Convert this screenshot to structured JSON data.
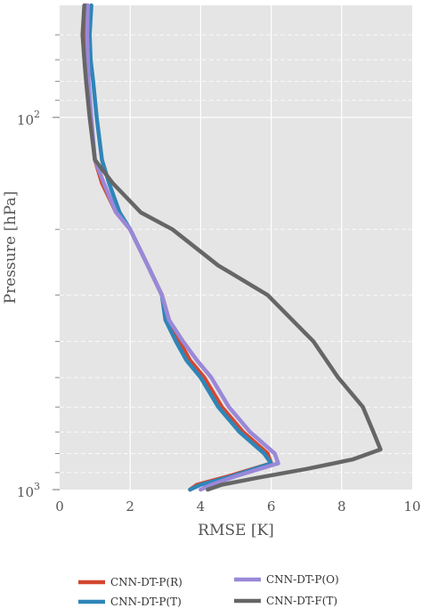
{
  "chart_data": {
    "type": "line",
    "xlabel": "RMSE [K]",
    "ylabel": "Pressure [hPa]",
    "xlim": [
      0,
      10
    ],
    "ylim": [
      1000,
      50
    ],
    "yscale": "log",
    "grid": true,
    "legend_position": "bottom",
    "x_ticks": [
      {
        "value": 0,
        "label": "0"
      },
      {
        "value": 2,
        "label": "2"
      },
      {
        "value": 4,
        "label": "4"
      },
      {
        "value": 6,
        "label": "6"
      },
      {
        "value": 8,
        "label": "8"
      },
      {
        "value": 10,
        "label": "10"
      }
    ],
    "y_ticks": [
      {
        "value": 100,
        "base": "10",
        "exp": "2"
      },
      {
        "value": 1000,
        "base": "10",
        "exp": "3"
      }
    ],
    "y_minor_ticks": [
      60,
      70,
      80,
      90,
      200,
      300,
      400,
      500,
      600,
      700,
      800,
      900
    ],
    "series": [
      {
        "name": "CNN-DT-P(R)",
        "color": "#d3472f",
        "points": [
          [
            0.75,
            50
          ],
          [
            0.72,
            60
          ],
          [
            0.75,
            70
          ],
          [
            0.8,
            80
          ],
          [
            0.88,
            100
          ],
          [
            1.0,
            130
          ],
          [
            1.2,
            150
          ],
          [
            1.6,
            180
          ],
          [
            2.0,
            200
          ],
          [
            2.5,
            250
          ],
          [
            2.9,
            300
          ],
          [
            3.1,
            350
          ],
          [
            3.4,
            400
          ],
          [
            3.7,
            450
          ],
          [
            4.1,
            500
          ],
          [
            4.6,
            600
          ],
          [
            5.2,
            700
          ],
          [
            5.9,
            800
          ],
          [
            6.0,
            850
          ],
          [
            4.8,
            920
          ],
          [
            3.9,
            970
          ],
          [
            3.7,
            1000
          ]
        ]
      },
      {
        "name": "CNN-DT-P(T)",
        "color": "#2f85b8",
        "points": [
          [
            0.9,
            50
          ],
          [
            0.85,
            60
          ],
          [
            0.88,
            70
          ],
          [
            0.95,
            80
          ],
          [
            1.05,
            100
          ],
          [
            1.2,
            130
          ],
          [
            1.4,
            150
          ],
          [
            1.7,
            180
          ],
          [
            2.0,
            200
          ],
          [
            2.5,
            250
          ],
          [
            2.9,
            300
          ],
          [
            3.0,
            350
          ],
          [
            3.3,
            400
          ],
          [
            3.6,
            450
          ],
          [
            4.0,
            500
          ],
          [
            4.5,
            600
          ],
          [
            5.1,
            700
          ],
          [
            5.8,
            800
          ],
          [
            6.0,
            850
          ],
          [
            4.9,
            920
          ],
          [
            4.0,
            970
          ],
          [
            3.7,
            1000
          ]
        ]
      },
      {
        "name": "CNN-DT-P(O)",
        "color": "#9a88d8",
        "points": [
          [
            0.8,
            50
          ],
          [
            0.78,
            60
          ],
          [
            0.8,
            70
          ],
          [
            0.82,
            80
          ],
          [
            0.9,
            100
          ],
          [
            1.0,
            130
          ],
          [
            1.25,
            150
          ],
          [
            1.6,
            180
          ],
          [
            2.0,
            200
          ],
          [
            2.5,
            250
          ],
          [
            2.9,
            300
          ],
          [
            3.1,
            350
          ],
          [
            3.5,
            400
          ],
          [
            3.9,
            450
          ],
          [
            4.3,
            500
          ],
          [
            4.8,
            600
          ],
          [
            5.4,
            700
          ],
          [
            6.1,
            800
          ],
          [
            6.2,
            850
          ],
          [
            5.0,
            920
          ],
          [
            4.3,
            970
          ],
          [
            4.0,
            1000
          ]
        ]
      },
      {
        "name": "CNN-DT-F(T)",
        "color": "#666666",
        "points": [
          [
            0.7,
            50
          ],
          [
            0.65,
            60
          ],
          [
            0.7,
            70
          ],
          [
            0.75,
            80
          ],
          [
            0.85,
            100
          ],
          [
            1.0,
            130
          ],
          [
            1.5,
            150
          ],
          [
            2.3,
            180
          ],
          [
            3.2,
            200
          ],
          [
            4.5,
            250
          ],
          [
            5.9,
            300
          ],
          [
            7.2,
            400
          ],
          [
            7.9,
            500
          ],
          [
            8.6,
            600
          ],
          [
            8.9,
            700
          ],
          [
            9.1,
            780
          ],
          [
            8.3,
            830
          ],
          [
            7.0,
            880
          ],
          [
            5.6,
            930
          ],
          [
            4.6,
            970
          ],
          [
            4.2,
            1000
          ]
        ]
      }
    ]
  }
}
